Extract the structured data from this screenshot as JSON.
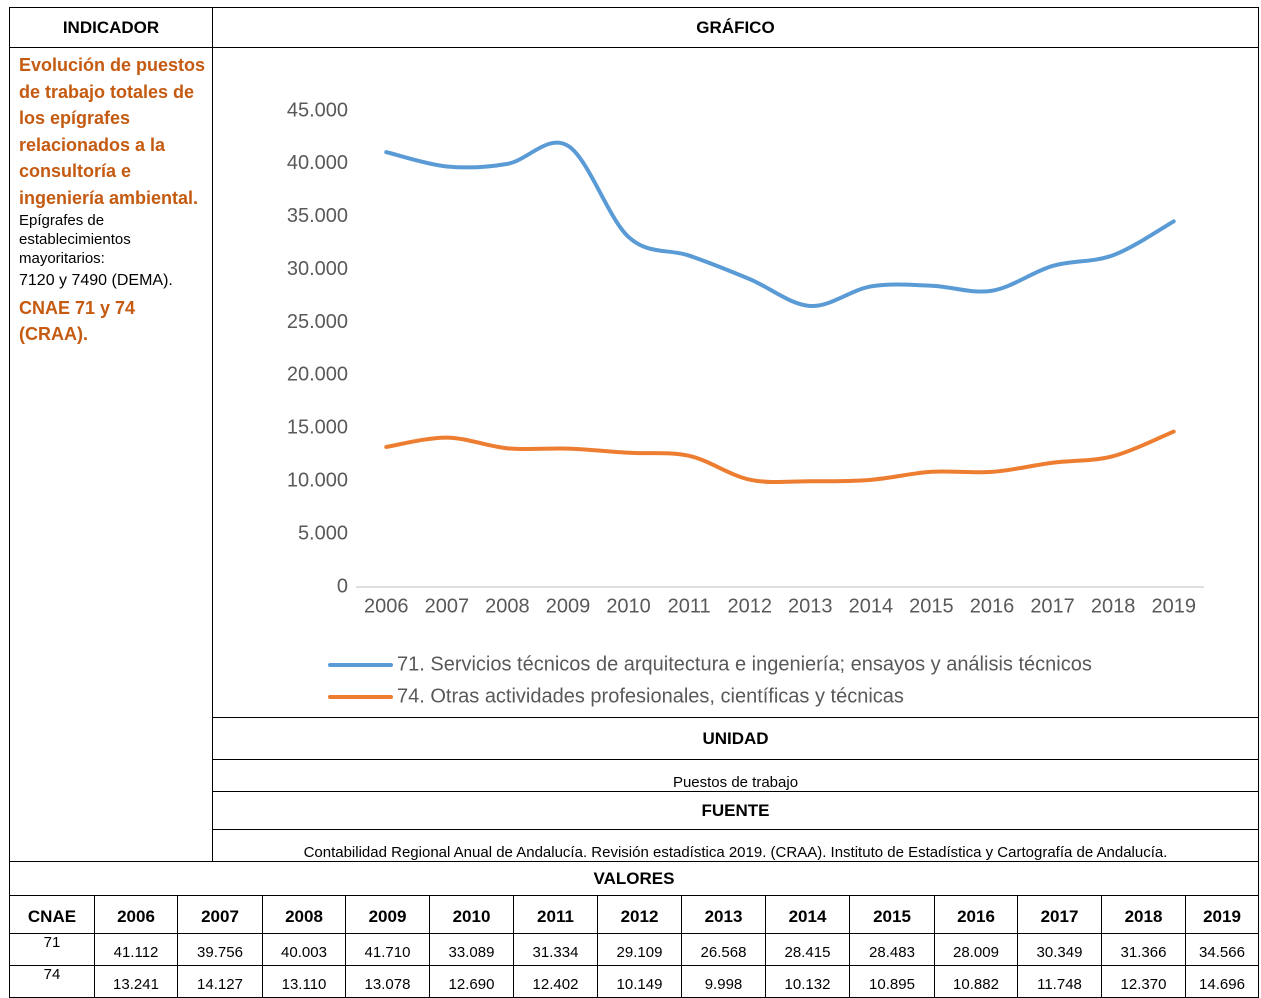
{
  "header": {
    "indicator": "INDICADOR",
    "chart": "GRÁFICO"
  },
  "indicator": {
    "title": "Evolución de puestos de trabajo totales de los epígrafes relacionados a la consultoría e ingeniería ambiental.",
    "note": "Epígrafes de establecimientos mayoritarios:",
    "codes": "7120 y 7490  (DEMA).",
    "cnae": "CNAE 71 y 74 (CRAA)."
  },
  "chart_data": {
    "type": "line",
    "categories": [
      "2006",
      "2007",
      "2008",
      "2009",
      "2010",
      "2011",
      "2012",
      "2013",
      "2014",
      "2015",
      "2016",
      "2017",
      "2018",
      "2019"
    ],
    "series": [
      {
        "name": "71. Servicios técnicos de arquitectura e ingeniería; ensayos y análisis técnicos",
        "color": "#5b9bd5",
        "values": [
          41112,
          39756,
          40003,
          41710,
          33089,
          31334,
          29109,
          26568,
          28415,
          28483,
          28009,
          30349,
          31366,
          34566
        ]
      },
      {
        "name": "74. Otras actividades profesionales, científicas y técnicas",
        "color": "#ed7d31",
        "values": [
          13241,
          14127,
          13110,
          13078,
          12690,
          12402,
          10149,
          9998,
          10132,
          10895,
          10882,
          11748,
          12370,
          14696
        ]
      }
    ],
    "ylim": [
      0,
      45000
    ],
    "yticks": [
      0,
      {
        "value": 5000,
        "label": "5.000"
      },
      {
        "value": 10000,
        "label": "10.000"
      },
      {
        "value": 15000,
        "label": "15.000"
      },
      {
        "value": 20000,
        "label": "20.000"
      },
      {
        "value": 25000,
        "label": "25.000"
      },
      {
        "value": 30000,
        "label": "30.000"
      },
      {
        "value": 35000,
        "label": "35.000"
      },
      {
        "value": 40000,
        "label": "40.000"
      },
      {
        "value": 45000,
        "label": "45.000"
      }
    ],
    "grid": false,
    "smooth": true,
    "legend": "bottom"
  },
  "unit": {
    "heading": "UNIDAD",
    "text": "Puestos de trabajo"
  },
  "source": {
    "heading": "FUENTE",
    "text": "Contabilidad Regional Anual de Andalucía. Revisión estadística 2019. (CRAA). Instituto de Estadística y  Cartografía de Andalucía."
  },
  "values_table": {
    "title": "VALORES",
    "header": [
      "CNAE",
      "2006",
      "2007",
      "2008",
      "2009",
      "2010",
      "2011",
      "2012",
      "2013",
      "2014",
      "2015",
      "2016",
      "2017",
      "2018",
      "2019"
    ],
    "rows": [
      [
        "71",
        "41.112",
        "39.756",
        "40.003",
        "41.710",
        "33.089",
        "31.334",
        "29.109",
        "26.568",
        "28.415",
        "28.483",
        "28.009",
        "30.349",
        "31.366",
        "34.566"
      ],
      [
        "74",
        "13.241",
        "14.127",
        "13.110",
        "13.078",
        "12.690",
        "12.402",
        "10.149",
        "9.998",
        "10.132",
        "10.895",
        "10.882",
        "11.748",
        "12.370",
        "14.696"
      ]
    ]
  }
}
